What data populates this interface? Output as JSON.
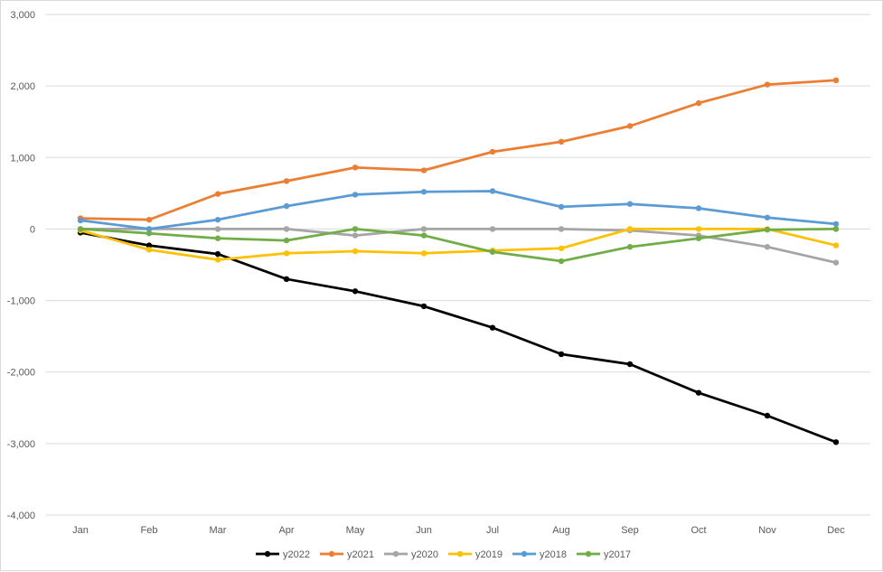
{
  "chart_data": {
    "type": "line",
    "title": "",
    "xlabel": "",
    "ylabel": "",
    "categories": [
      "Jan",
      "Feb",
      "Mar",
      "Apr",
      "May",
      "Jun",
      "Jul",
      "Aug",
      "Sep",
      "Oct",
      "Nov",
      "Dec"
    ],
    "ylim": [
      -4000,
      3000
    ],
    "yticks": [
      3000,
      2000,
      1000,
      0,
      -1000,
      -2000,
      -3000,
      -4000
    ],
    "ytick_labels": [
      "3,000",
      "2,000",
      "1,000",
      "0",
      "-1,000",
      "-2,000",
      "-3,000",
      "-4,000"
    ],
    "grid": true,
    "legend_position": "bottom",
    "series": [
      {
        "name": "y2022",
        "color": "#000000",
        "values": [
          -50,
          -230,
          -350,
          -700,
          -870,
          -1080,
          -1380,
          -1750,
          -1890,
          -2290,
          -2610,
          -2980
        ]
      },
      {
        "name": "y2021",
        "color": "#ed7d31",
        "values": [
          150,
          130,
          490,
          670,
          860,
          820,
          1080,
          1220,
          1440,
          1760,
          2020,
          2080
        ]
      },
      {
        "name": "y2020",
        "color": "#a5a5a5",
        "values": [
          0,
          0,
          0,
          0,
          -90,
          0,
          0,
          0,
          -20,
          -90,
          -250,
          -470
        ]
      },
      {
        "name": "y2019",
        "color": "#ffc000",
        "values": [
          -20,
          -290,
          -430,
          -340,
          -310,
          -340,
          -300,
          -270,
          0,
          0,
          0,
          -230
        ]
      },
      {
        "name": "y2018",
        "color": "#5b9bd5",
        "values": [
          120,
          0,
          130,
          320,
          480,
          520,
          530,
          310,
          350,
          290,
          160,
          70
        ]
      },
      {
        "name": "y2017",
        "color": "#70ad47",
        "values": [
          0,
          -60,
          -130,
          -160,
          0,
          -90,
          -320,
          -450,
          -250,
          -130,
          -10,
          0
        ]
      }
    ]
  }
}
